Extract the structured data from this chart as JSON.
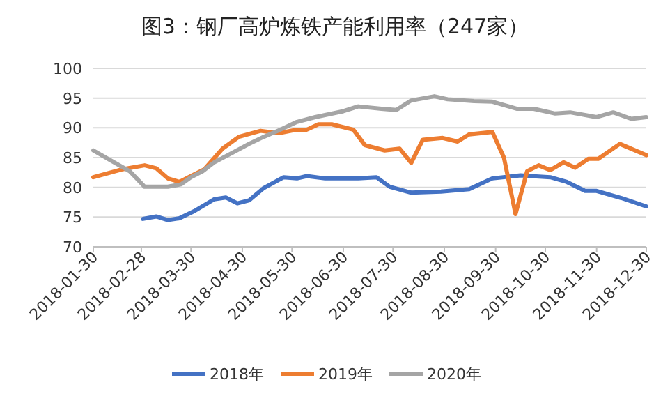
{
  "chart_data": {
    "type": "line",
    "title": "图3：钢厂高炉炼铁产能利用率（247家）",
    "xlim": [
      "2018-01-30",
      "2018-12-30"
    ],
    "xticks": [
      "2018-01-30",
      "2018-02-28",
      "2018-03-30",
      "2018-04-30",
      "2018-05-30",
      "2018-06-30",
      "2018-07-30",
      "2018-08-30",
      "2018-09-30",
      "2018-10-30",
      "2018-11-30",
      "2018-12-30"
    ],
    "ylim": [
      70,
      100
    ],
    "yticks": [
      70,
      75,
      80,
      85,
      90,
      95,
      100
    ],
    "grid": "y",
    "legend": "bottom",
    "marker": "none",
    "line_style": "solid",
    "series": [
      {
        "name": "2018年",
        "color": "#4472c4",
        "x": [
          "2018-03-01",
          "2018-03-09",
          "2018-03-16",
          "2018-03-23",
          "2018-04-01",
          "2018-04-13",
          "2018-04-20",
          "2018-04-27",
          "2018-05-04",
          "2018-05-13",
          "2018-05-25",
          "2018-06-02",
          "2018-06-08",
          "2018-06-19",
          "2018-06-30",
          "2018-07-09",
          "2018-07-20",
          "2018-07-28",
          "2018-08-10",
          "2018-08-28",
          "2018-09-14",
          "2018-09-28",
          "2018-10-15",
          "2018-11-02",
          "2018-11-12",
          "2018-11-23",
          "2018-11-30",
          "2018-12-15",
          "2018-12-30"
        ],
        "values": [
          74.7,
          75.1,
          74.5,
          74.8,
          76.0,
          78.0,
          78.3,
          77.3,
          77.8,
          79.9,
          81.7,
          81.5,
          81.9,
          81.5,
          81.5,
          81.5,
          81.7,
          80.1,
          79.1,
          79.3,
          79.7,
          81.5,
          82.0,
          81.7,
          80.9,
          79.4,
          79.4,
          78.2,
          76.8
        ]
      },
      {
        "name": "2019年",
        "color": "#ed7d31",
        "x": [
          "2018-01-30",
          "2018-02-16",
          "2018-03-02",
          "2018-03-09",
          "2018-03-16",
          "2018-03-23",
          "2018-03-30",
          "2018-04-07",
          "2018-04-18",
          "2018-04-28",
          "2018-05-11",
          "2018-05-22",
          "2018-06-02",
          "2018-06-08",
          "2018-06-15",
          "2018-06-23",
          "2018-07-06",
          "2018-07-13",
          "2018-07-25",
          "2018-08-03",
          "2018-08-10",
          "2018-08-17",
          "2018-08-29",
          "2018-09-07",
          "2018-09-14",
          "2018-09-28",
          "2018-10-05",
          "2018-10-12",
          "2018-10-19",
          "2018-10-26",
          "2018-11-02",
          "2018-11-10",
          "2018-11-17",
          "2018-11-25",
          "2018-12-01",
          "2018-12-14",
          "2018-12-30"
        ],
        "values": [
          81.7,
          83.0,
          83.7,
          83.2,
          81.5,
          80.9,
          81.9,
          83.0,
          86.5,
          88.5,
          89.5,
          89.1,
          89.7,
          89.7,
          90.6,
          90.6,
          89.7,
          87.1,
          86.2,
          86.5,
          84.1,
          88.0,
          88.3,
          87.7,
          88.9,
          89.3,
          85.0,
          75.5,
          82.7,
          83.7,
          82.9,
          84.2,
          83.3,
          84.8,
          84.8,
          87.3,
          85.4
        ]
      },
      {
        "name": "2020年",
        "color": "#a5a5a5",
        "x": [
          "2018-01-30",
          "2018-02-09",
          "2018-02-21",
          "2018-03-02",
          "2018-03-16",
          "2018-03-24",
          "2018-03-30",
          "2018-04-06",
          "2018-04-13",
          "2018-04-24",
          "2018-05-04",
          "2018-05-13",
          "2018-05-23",
          "2018-06-02",
          "2018-06-13",
          "2018-06-30",
          "2018-07-09",
          "2018-07-23",
          "2018-08-01",
          "2018-08-10",
          "2018-08-24",
          "2018-09-01",
          "2018-09-17",
          "2018-09-28",
          "2018-10-13",
          "2018-10-23",
          "2018-11-05",
          "2018-11-14",
          "2018-11-30",
          "2018-12-10",
          "2018-12-21",
          "2018-12-30"
        ],
        "values": [
          86.2,
          84.6,
          82.7,
          80.1,
          80.1,
          80.5,
          81.7,
          82.7,
          84.2,
          85.8,
          87.3,
          88.5,
          89.7,
          91.0,
          91.8,
          92.8,
          93.6,
          93.2,
          93.0,
          94.6,
          95.3,
          94.8,
          94.5,
          94.4,
          93.2,
          93.2,
          92.4,
          92.6,
          91.8,
          92.6,
          91.5,
          91.8
        ]
      }
    ]
  }
}
